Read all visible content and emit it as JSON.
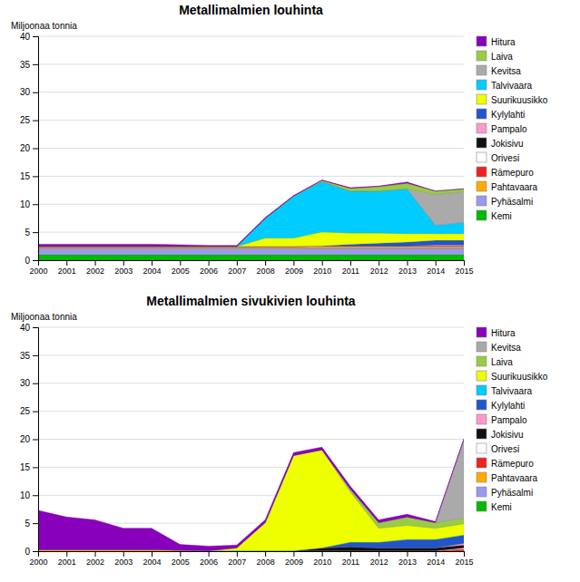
{
  "chart_data": [
    {
      "type": "area",
      "stacked": true,
      "title": "Metallimalmien louhinta",
      "ylabel": "Miljoonaa tonnia",
      "x": [
        2000,
        2001,
        2002,
        2003,
        2004,
        2005,
        2006,
        2007,
        2008,
        2009,
        2010,
        2011,
        2012,
        2013,
        2014,
        2015
      ],
      "xlim": [
        2000,
        2015
      ],
      "xticks": [
        2000,
        2001,
        2002,
        2003,
        2004,
        2005,
        2006,
        2007,
        2008,
        2009,
        2010,
        2011,
        2012,
        2013,
        2014,
        2015
      ],
      "ylim": [
        0,
        40
      ],
      "yticks": [
        0,
        5,
        10,
        15,
        20,
        25,
        30,
        35,
        40
      ],
      "grid": "y",
      "legend": "right",
      "series": [
        {
          "name": "Kemi",
          "color": "#00bb00",
          "values": [
            1.0,
            1.0,
            1.0,
            1.0,
            1.0,
            1.0,
            1.0,
            1.0,
            1.0,
            1.0,
            1.0,
            1.0,
            1.0,
            1.0,
            1.0,
            1.0
          ]
        },
        {
          "name": "Pyhäsalmi",
          "color": "#9999ee",
          "values": [
            1.1,
            1.1,
            1.1,
            1.1,
            1.1,
            1.1,
            1.1,
            1.1,
            1.1,
            1.1,
            1.1,
            1.1,
            1.1,
            1.1,
            1.1,
            1.1
          ]
        },
        {
          "name": "Pahtavaara",
          "color": "#ffaa00",
          "values": [
            0.2,
            0.2,
            0.2,
            0.2,
            0.2,
            0.2,
            0.2,
            0.2,
            0.2,
            0.2,
            0.2,
            0.2,
            0.2,
            0.2,
            0.2,
            0.2
          ]
        },
        {
          "name": "Rämepuro",
          "color": "#ee2222",
          "values": [
            0.05,
            0.05,
            0.05,
            0.05,
            0.05,
            0.05,
            0.05,
            0.05,
            0.05,
            0.05,
            0.05,
            0.05,
            0.05,
            0.05,
            0.05,
            0.05
          ]
        },
        {
          "name": "Orivesi",
          "color": "#ffffff",
          "values": [
            0.1,
            0.1,
            0.1,
            0.1,
            0.1,
            0.1,
            0.1,
            0.1,
            0.1,
            0.1,
            0.1,
            0.1,
            0.1,
            0.1,
            0.1,
            0.1
          ]
        },
        {
          "name": "Jokisivu",
          "color": "#111111",
          "values": [
            0,
            0,
            0,
            0,
            0,
            0,
            0,
            0,
            0,
            0,
            0.1,
            0.1,
            0.1,
            0.1,
            0.1,
            0.1
          ]
        },
        {
          "name": "Pampalo",
          "color": "#ff99cc",
          "values": [
            0,
            0,
            0,
            0,
            0,
            0,
            0,
            0,
            0,
            0,
            0,
            0,
            0,
            0,
            0.2,
            0.2
          ]
        },
        {
          "name": "Kylylahti",
          "color": "#2255cc",
          "values": [
            0,
            0,
            0,
            0,
            0,
            0,
            0,
            0,
            0,
            0,
            0,
            0.3,
            0.5,
            0.7,
            0.8,
            0.8
          ]
        },
        {
          "name": "Suurikuusikko",
          "color": "#eeff00",
          "values": [
            0,
            0,
            0,
            0,
            0,
            0,
            0,
            0,
            1.5,
            1.5,
            2.5,
            2.0,
            1.8,
            1.5,
            1.2,
            1.2
          ]
        },
        {
          "name": "Talvivaara",
          "color": "#00ccff",
          "values": [
            0,
            0,
            0,
            0,
            0,
            0,
            0,
            0,
            3.5,
            7.5,
            9.0,
            7.5,
            7.5,
            8.0,
            1.5,
            2.0
          ]
        },
        {
          "name": "Kevitsa",
          "color": "#aaaaaa",
          "values": [
            0,
            0,
            0,
            0,
            0,
            0,
            0,
            0,
            0,
            0,
            0,
            0,
            0,
            0,
            5.5,
            5.5
          ]
        },
        {
          "name": "Laiva",
          "color": "#99cc44",
          "values": [
            0,
            0,
            0,
            0,
            0,
            0,
            0,
            0,
            0,
            0,
            0.2,
            0.5,
            0.8,
            1.0,
            0.6,
            0.5
          ]
        },
        {
          "name": "Hitura",
          "color": "#8800bb",
          "values": [
            0.4,
            0.4,
            0.4,
            0.4,
            0.4,
            0.3,
            0.2,
            0.2,
            0.15,
            0.1,
            0.1,
            0.1,
            0.1,
            0.2,
            0.0,
            0.0
          ]
        }
      ]
    },
    {
      "type": "area",
      "stacked": true,
      "title": "Metallimalmien sivukivien louhinta",
      "ylabel": "Miljoonaa tonnia",
      "x": [
        2000,
        2001,
        2002,
        2003,
        2004,
        2005,
        2006,
        2007,
        2008,
        2009,
        2010,
        2011,
        2012,
        2013,
        2014,
        2015
      ],
      "xlim": [
        2000,
        2015
      ],
      "xticks": [
        2000,
        2001,
        2002,
        2003,
        2004,
        2005,
        2006,
        2007,
        2008,
        2009,
        2010,
        2011,
        2012,
        2013,
        2014,
        2015
      ],
      "ylim": [
        0,
        40
      ],
      "yticks": [
        0,
        5,
        10,
        15,
        20,
        25,
        30,
        35,
        40
      ],
      "grid": "y",
      "legend": "right",
      "series": [
        {
          "name": "Kemi",
          "color": "#00bb00",
          "values": [
            0,
            0,
            0,
            0,
            0,
            0,
            0,
            0,
            0,
            0,
            0,
            0,
            0,
            0,
            0,
            0
          ]
        },
        {
          "name": "Pyhäsalmi",
          "color": "#9999ee",
          "values": [
            0,
            0,
            0,
            0,
            0,
            0,
            0,
            0,
            0,
            0,
            0,
            0,
            0,
            0,
            0,
            0
          ]
        },
        {
          "name": "Pahtavaara",
          "color": "#ffaa00",
          "values": [
            0.3,
            0.3,
            0.3,
            0.3,
            0.3,
            0.2,
            0.1,
            0.1,
            0.1,
            0.1,
            0.1,
            0.1,
            0.1,
            0.1,
            0.1,
            0.1
          ]
        },
        {
          "name": "Rämepuro",
          "color": "#ee2222",
          "values": [
            0,
            0,
            0,
            0,
            0,
            0,
            0,
            0,
            0,
            0,
            0,
            0,
            0,
            0,
            0,
            0.3
          ]
        },
        {
          "name": "Orivesi",
          "color": "#ffffff",
          "values": [
            0,
            0,
            0,
            0,
            0,
            0,
            0,
            0,
            0,
            0,
            0,
            0,
            0,
            0,
            0,
            0.2
          ]
        },
        {
          "name": "Jokisivu",
          "color": "#111111",
          "values": [
            0,
            0,
            0,
            0,
            0,
            0,
            0,
            0,
            0,
            0,
            0.5,
            0.7,
            0.5,
            0.5,
            0.5,
            0.5
          ]
        },
        {
          "name": "Pampalo",
          "color": "#ff99cc",
          "values": [
            0,
            0,
            0,
            0,
            0,
            0,
            0,
            0,
            0,
            0,
            0,
            0,
            0,
            0,
            0,
            0.3
          ]
        },
        {
          "name": "Kylylahti",
          "color": "#2255cc",
          "values": [
            0,
            0,
            0,
            0,
            0,
            0,
            0,
            0,
            0,
            0,
            0,
            0.8,
            1.0,
            1.5,
            1.5,
            1.5
          ]
        },
        {
          "name": "Talvivaara",
          "color": "#00ccff",
          "values": [
            0,
            0,
            0,
            0,
            0,
            0,
            0,
            0,
            0,
            0,
            0,
            0,
            0,
            0,
            0,
            0
          ]
        },
        {
          "name": "Suurikuusikko",
          "color": "#eeff00",
          "values": [
            0,
            0,
            0,
            0,
            0,
            0,
            0,
            0.5,
            5.0,
            17.0,
            17.5,
            9.0,
            2.5,
            2.5,
            2.0,
            2.0
          ]
        },
        {
          "name": "Laiva",
          "color": "#99cc44",
          "values": [
            0,
            0,
            0,
            0,
            0,
            0,
            0,
            0,
            0,
            0,
            0,
            0.5,
            1.0,
            1.5,
            1.0,
            1.0
          ]
        },
        {
          "name": "Kevitsa",
          "color": "#aaaaaa",
          "values": [
            0,
            0,
            0,
            0,
            0,
            0,
            0,
            0,
            0,
            0,
            0,
            0,
            0,
            0,
            0,
            14.0
          ]
        },
        {
          "name": "Hitura",
          "color": "#8800bb",
          "values": [
            7.0,
            5.8,
            5.3,
            3.8,
            3.8,
            1.0,
            0.8,
            0.5,
            0.5,
            0.5,
            0.5,
            0.5,
            0.5,
            0.5,
            0.2,
            0.2
          ]
        }
      ]
    }
  ]
}
